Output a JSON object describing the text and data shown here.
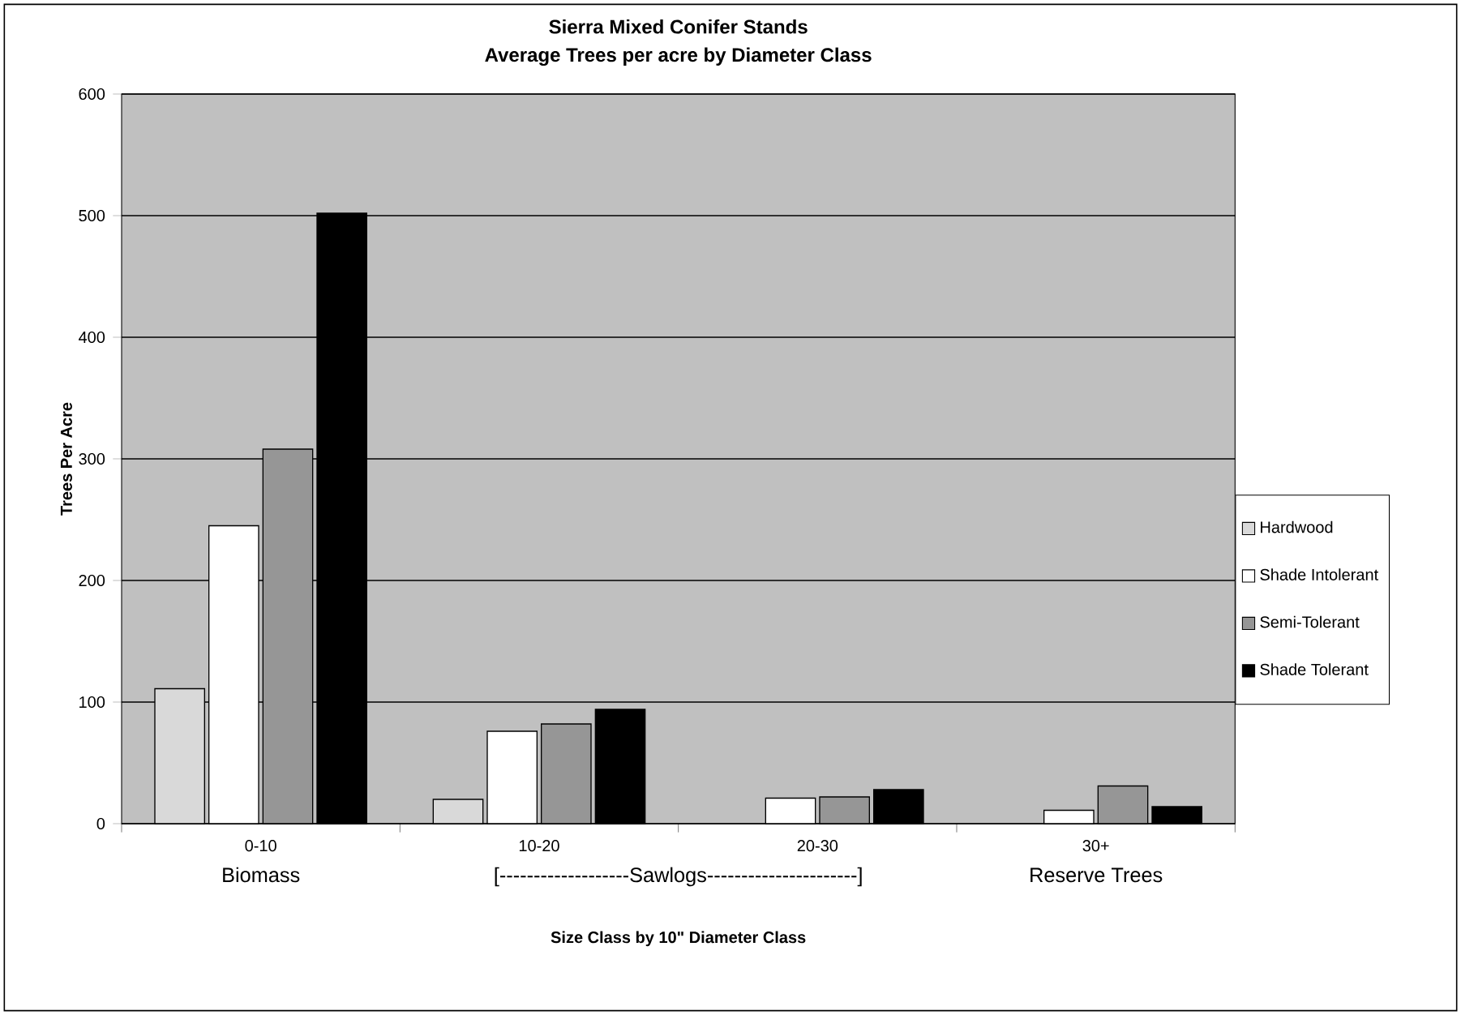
{
  "chart_data": {
    "type": "bar",
    "title": "Sierra Mixed Conifer Stands",
    "subtitle": "Average Trees per acre by Diameter Class",
    "xlabel": "Size Class by 10\" Diameter Class",
    "ylabel": "Trees Per Acre",
    "categories": [
      "0-10",
      "10-20",
      "20-30",
      "30+"
    ],
    "series": [
      {
        "name": "Hardwood",
        "color": "#d9d9d9",
        "values": [
          111,
          20,
          null,
          null
        ]
      },
      {
        "name": "Shade Intolerant",
        "color": "#ffffff",
        "values": [
          245,
          76,
          21,
          11
        ]
      },
      {
        "name": "Semi-Tolerant",
        "color": "#969696",
        "values": [
          308,
          82,
          22,
          31
        ]
      },
      {
        "name": "Shade Tolerant",
        "color": "#000000",
        "values": [
          502,
          94,
          28,
          14
        ]
      }
    ],
    "ylim": [
      0,
      600
    ],
    "yticks": [
      0,
      100,
      200,
      300,
      400,
      500,
      600
    ],
    "grid": "y",
    "legend": "right",
    "annotations": [
      "Biomass",
      "[-------------------Sawlogs----------------------]",
      "Reserve Trees"
    ]
  }
}
